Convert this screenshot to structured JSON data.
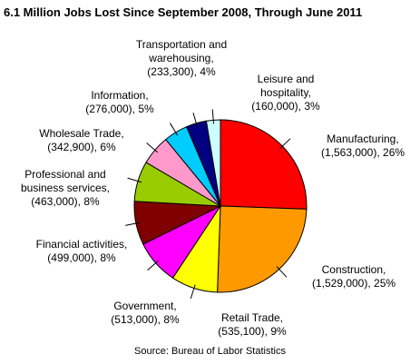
{
  "chart_data": {
    "type": "pie",
    "title": "6.1 Million Jobs Lost Since September 2008, Through June 2011",
    "source": "Source: Bureau of Labor Statistics",
    "categories": [
      "Manufacturing,",
      "Construction,",
      "Retail Trade,",
      "Government,",
      "Financial activities,",
      "Professional and business services,",
      "Wholesale Trade,",
      "Information,",
      "Transportation and warehousing,",
      "Leisure and hospitality,"
    ],
    "values": [
      1563000,
      1529000,
      535100,
      513000,
      499000,
      463000,
      342900,
      276000,
      233300,
      160000
    ],
    "value_labels": [
      "(1,563,000), 26%",
      "(1,529,000), 25%",
      "(535,100), 9%",
      "(513,000), 8%",
      "(499,000), 8%",
      "(463,000), 8%",
      "(342,900), 6%",
      "(276,000), 5%",
      "(233,300), 4%",
      "(160,000), 3%"
    ],
    "colors": [
      "#ff0000",
      "#ff9900",
      "#ffff00",
      "#ff00ff",
      "#800000",
      "#99cc00",
      "#ff99cc",
      "#00ccff",
      "#000080",
      "#ccffff"
    ]
  }
}
